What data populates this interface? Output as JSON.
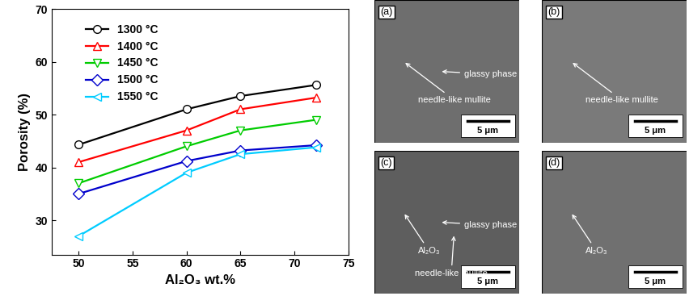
{
  "chart_data": {
    "type": "line",
    "x_label": "Al₂O₃ wt.%",
    "y_label": "Porosity (%)",
    "x": [
      50,
      60,
      65,
      72
    ],
    "series": [
      {
        "name": "1300 °C",
        "color": "#000000",
        "marker": "circle",
        "values": [
          44.3,
          51.0,
          53.5,
          55.6
        ]
      },
      {
        "name": "1400 °C",
        "color": "#ff0000",
        "marker": "triangle_up",
        "values": [
          41.0,
          47.0,
          51.0,
          53.2
        ]
      },
      {
        "name": "1450 °C",
        "color": "#00cc00",
        "marker": "triangle_down",
        "values": [
          37.0,
          44.0,
          47.0,
          49.0
        ]
      },
      {
        "name": "1500 °C",
        "color": "#0000cc",
        "marker": "diamond",
        "values": [
          35.0,
          41.2,
          43.2,
          44.2
        ]
      },
      {
        "name": "1550 °C",
        "color": "#00ccff",
        "marker": "triangle_left",
        "values": [
          27.0,
          39.0,
          42.5,
          43.8
        ]
      }
    ],
    "xlim": [
      47.5,
      75
    ],
    "xticks": [
      50,
      55,
      60,
      65,
      70,
      75
    ],
    "ylim": [
      23.5,
      70
    ],
    "yticks": [
      30,
      40,
      50,
      60,
      70
    ],
    "legend": "upper left",
    "grid": false
  },
  "micrographs": [
    {
      "label": "(a)",
      "annotations": [
        "needle-like mullite",
        "glassy phase"
      ],
      "scale_bar": "5 μm"
    },
    {
      "label": "(b)",
      "annotations": [
        "needle-like mullite"
      ],
      "scale_bar": "5 μm"
    },
    {
      "label": "(c)",
      "annotations": [
        "Al₂O₃",
        "glassy phase",
        "needle-like mullite"
      ],
      "scale_bar": "5 μm"
    },
    {
      "label": "(d)",
      "annotations": [
        "Al₂O₃"
      ],
      "scale_bar": "5 μm"
    }
  ]
}
